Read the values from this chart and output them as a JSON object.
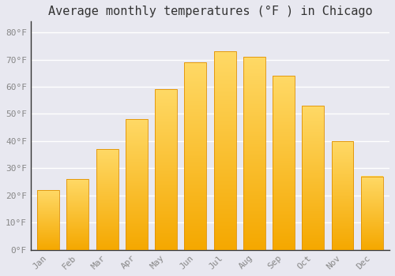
{
  "title": "Average monthly temperatures (°F ) in Chicago",
  "months": [
    "Jan",
    "Feb",
    "Mar",
    "Apr",
    "May",
    "Jun",
    "Jul",
    "Aug",
    "Sep",
    "Oct",
    "Nov",
    "Dec"
  ],
  "values": [
    22,
    26,
    37,
    48,
    59,
    69,
    73,
    71,
    64,
    53,
    40,
    27
  ],
  "bar_color_bottom": "#F5A800",
  "bar_color_top": "#FFD966",
  "bar_color_mid": "#FFC830",
  "background_color": "#E8E8F0",
  "plot_bg_color": "#E8E8F0",
  "grid_color": "#ffffff",
  "yticks": [
    0,
    10,
    20,
    30,
    40,
    50,
    60,
    70,
    80
  ],
  "ylim": [
    0,
    84
  ],
  "title_fontsize": 11,
  "tick_fontsize": 8,
  "tick_color": "#888888",
  "spine_color": "#333333"
}
